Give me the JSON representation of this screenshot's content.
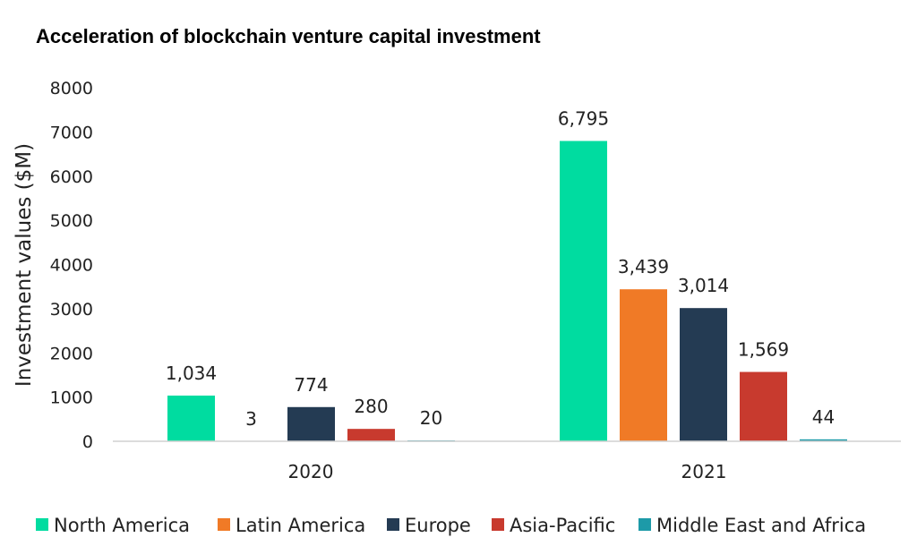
{
  "chart_data": {
    "type": "bar",
    "title": "Acceleration of blockchain venture capital investment",
    "xlabel": "",
    "ylabel": "Investment values ($M)",
    "ylim": [
      0,
      8000
    ],
    "yticks": [
      0,
      1000,
      2000,
      3000,
      4000,
      5000,
      6000,
      7000,
      8000
    ],
    "categories": [
      "2020",
      "2021"
    ],
    "series": [
      {
        "name": "North America",
        "color": "#00dca0",
        "values": [
          1034,
          6795
        ],
        "labels": [
          "1,034",
          "6,795"
        ]
      },
      {
        "name": "Latin America",
        "color": "#f07a26",
        "values": [
          3,
          3439
        ],
        "labels": [
          "3",
          "3,439"
        ]
      },
      {
        "name": "Europe",
        "color": "#243b53",
        "values": [
          774,
          3014
        ],
        "labels": [
          "774",
          "3,014"
        ]
      },
      {
        "name": "Asia-Pacific",
        "color": "#c83a2e",
        "values": [
          280,
          1569
        ],
        "labels": [
          "280",
          "1,569"
        ]
      },
      {
        "name": "Middle East and Africa",
        "color": "#1d9aa8",
        "values": [
          20,
          44
        ],
        "labels": [
          "20",
          "44"
        ]
      }
    ],
    "grid": false,
    "legend_position": "bottom"
  }
}
